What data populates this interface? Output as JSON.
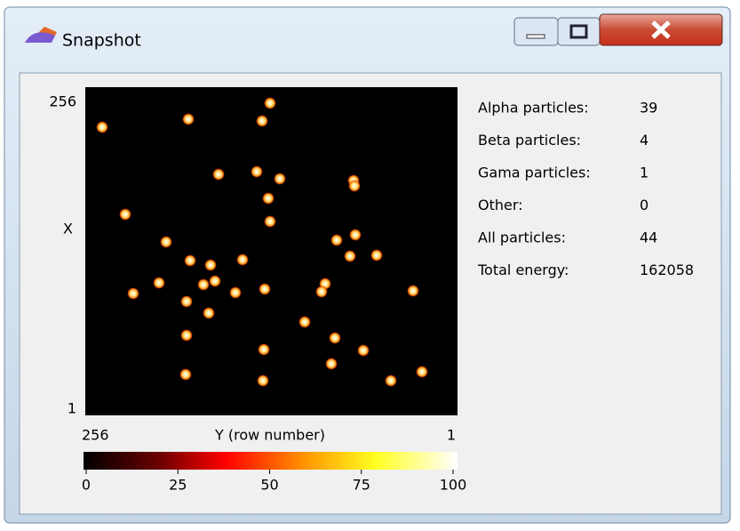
{
  "window": {
    "title": "Snapshot"
  },
  "plot": {
    "x_axis_top": "256",
    "x_axis_label": "X",
    "x_axis_bottom": "1",
    "y_axis_left": "256",
    "y_axis_label": "Y (row number)",
    "y_axis_right": "1"
  },
  "colorbar": {
    "ticks": [
      0,
      25,
      50,
      75,
      100
    ]
  },
  "stats": {
    "rows": [
      [
        "Alpha particles:",
        39
      ],
      [
        "Beta particles:",
        4
      ],
      [
        "Gama particles:",
        1
      ],
      [
        "Other:",
        0
      ],
      [
        "All particles:",
        44
      ],
      [
        "Total energy:",
        162058
      ]
    ]
  }
}
